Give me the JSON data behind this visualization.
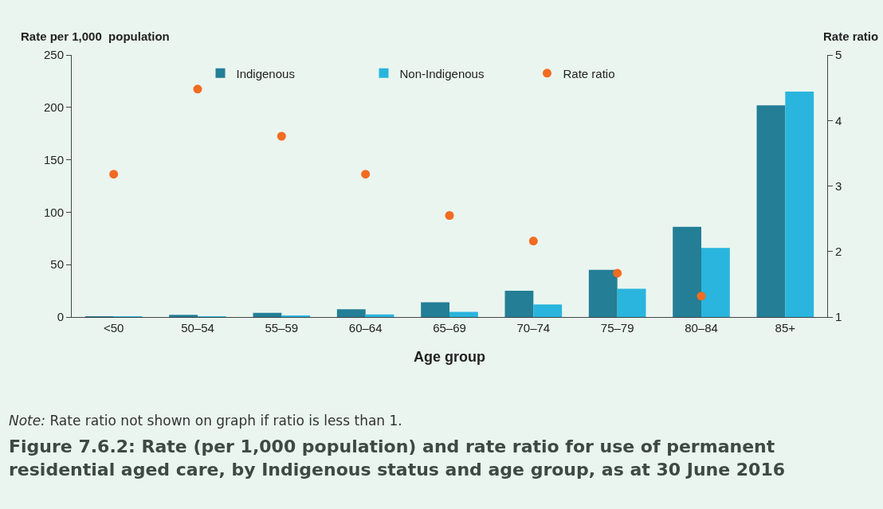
{
  "chart_data": {
    "type": "bar",
    "title": "Figure 7.6.2: Rate (per 1,000 population) and rate ratio for use of permanent residential aged care, by Indigenous status and age group, as at 30 June 2016",
    "xlabel": "Age group",
    "ylabel": "Rate per 1,000  population",
    "y2label": "Rate ratio",
    "categories": [
      "<50",
      "50–54",
      "55–59",
      "60–64",
      "65–69",
      "70–74",
      "75–79",
      "80–84",
      "85+"
    ],
    "series": [
      {
        "name": "Indigenous",
        "color": "#237e96",
        "values": [
          0.3,
          2,
          4,
          7.5,
          14,
          25,
          45,
          86,
          202
        ]
      },
      {
        "name": "Non-Indigenous",
        "color": "#29b5dd",
        "values": [
          0.2,
          0.5,
          1,
          2.5,
          5,
          12,
          27,
          66,
          215
        ]
      },
      {
        "name": "Rate ratio",
        "color": "#f26b21",
        "type": "scatter",
        "axis": "y2",
        "marker": "circle",
        "values": [
          3.18,
          4.48,
          3.76,
          3.18,
          2.55,
          2.16,
          1.67,
          1.32,
          null
        ]
      }
    ],
    "ylim": [
      0,
      250
    ],
    "yticks": [
      0,
      50,
      100,
      150,
      200,
      250
    ],
    "y2lim": [
      1,
      5
    ],
    "y2ticks": [
      1,
      2,
      3,
      4,
      5
    ],
    "grid": false,
    "legend": "top",
    "annotations": [
      "Note: Rate ratio not shown on graph if ratio is less than 1."
    ]
  }
}
